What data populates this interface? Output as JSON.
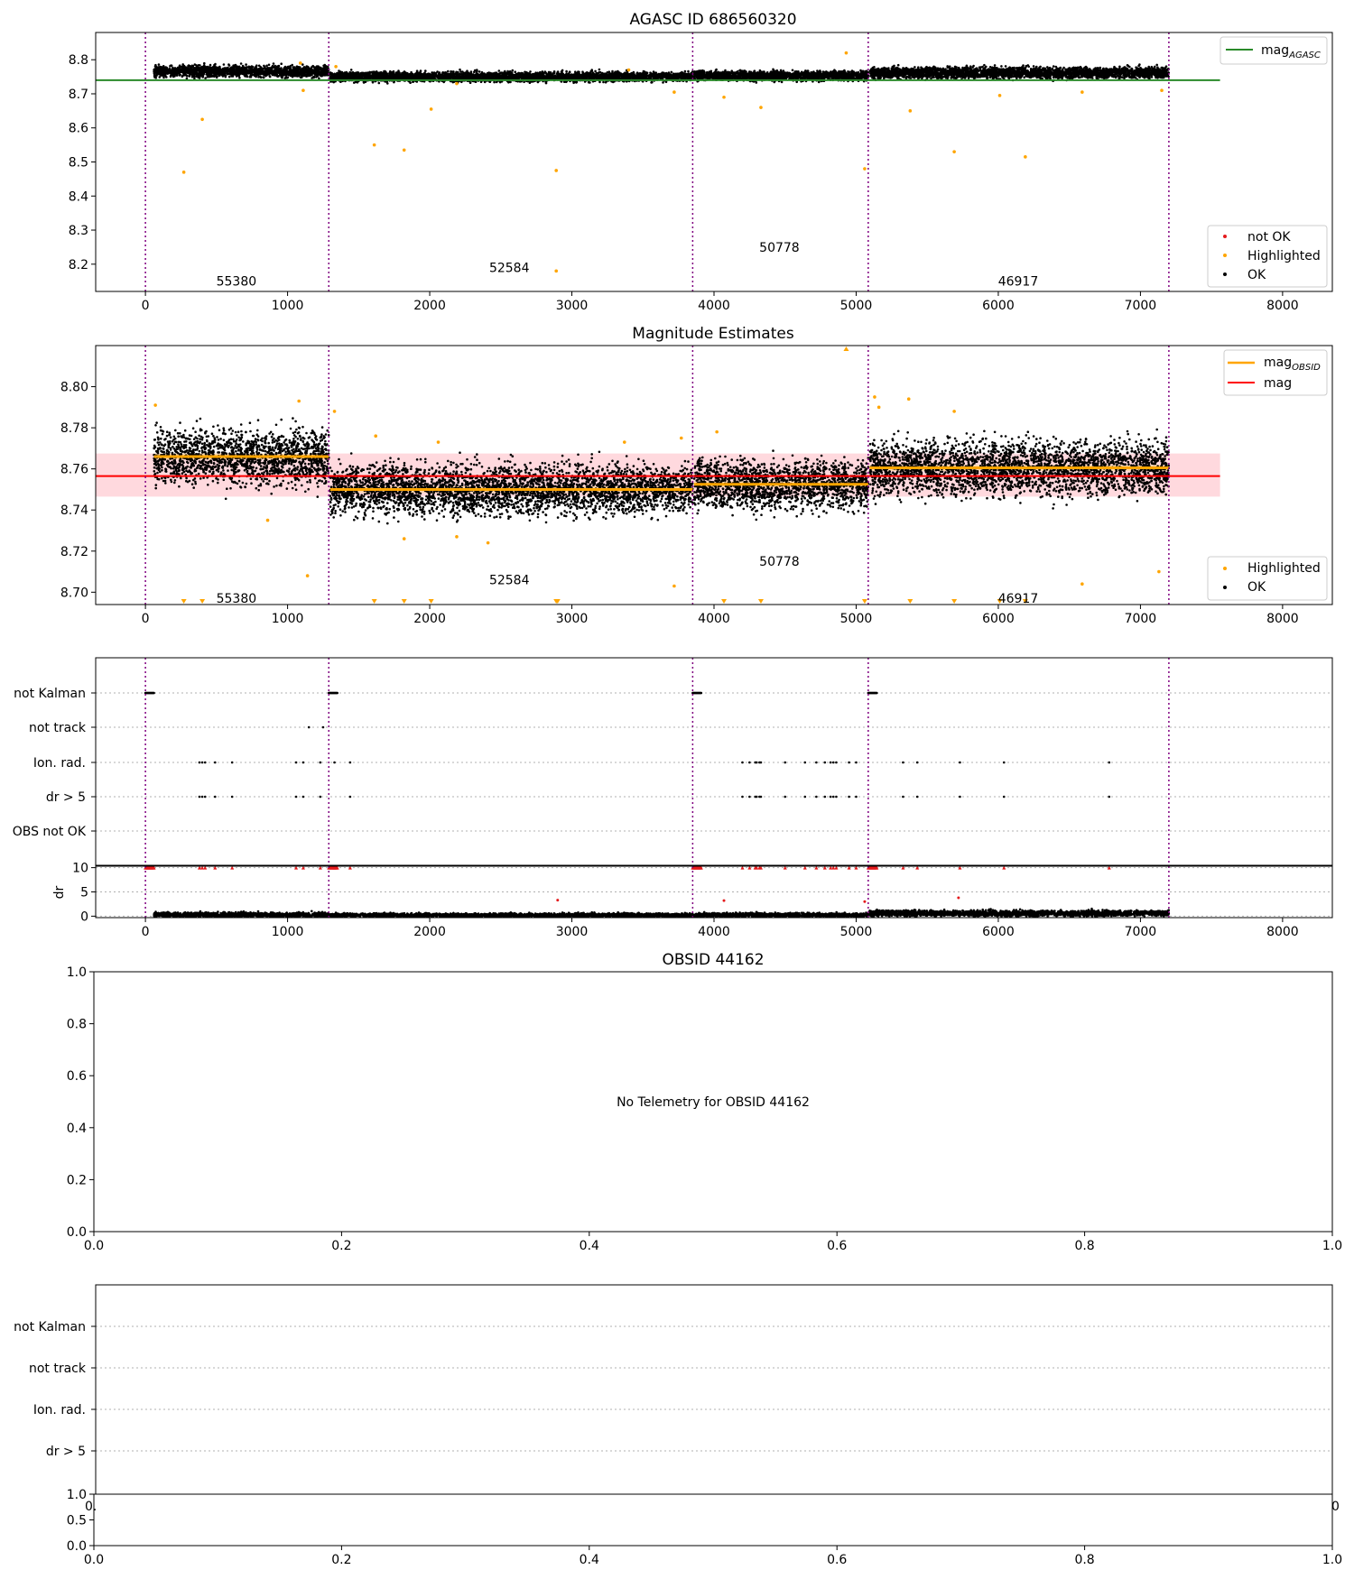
{
  "colors": {
    "ok": "#000000",
    "not_ok": "#e41a1c",
    "highlighted": "#ffa500",
    "mag_agasc": "#2a8a2a",
    "mag_obsid": "#ffa500",
    "mag": "#ff0000",
    "mag_band": "#ffc0c8",
    "obsid_band": "#ffd8a0",
    "boundary": "#800080",
    "grid": "#b0b0b0"
  },
  "chart_data": [
    {
      "type": "scatter",
      "id": "agasc",
      "title": "AGASC ID 686560320",
      "xlabel": "",
      "ylabel": "",
      "xlim": [
        -350,
        8350
      ],
      "ylim": [
        8.12,
        8.88
      ],
      "x_ticks": [
        0,
        1000,
        2000,
        3000,
        4000,
        5000,
        6000,
        7000,
        8000
      ],
      "x_tick_labels": [
        "0",
        "1000",
        "2000",
        "3000",
        "4000",
        "5000",
        "6000",
        "7000",
        "8000"
      ],
      "y_ticks": [
        8.2,
        8.3,
        8.4,
        8.5,
        8.6,
        8.7,
        8.8
      ],
      "y_tick_labels": [
        "8.2",
        "8.3",
        "8.4",
        "8.5",
        "8.6",
        "8.7",
        "8.8"
      ],
      "boundaries": [
        0,
        1290,
        3850,
        5085,
        7200
      ],
      "reference_line": {
        "name": "mag",
        "sub": "AGASC",
        "y": 8.74,
        "x": [
          -350,
          7560
        ]
      },
      "segments": [
        {
          "x": [
            60,
            1290
          ],
          "y": 8.766,
          "spread": 0.008
        },
        {
          "x": [
            1300,
            3850
          ],
          "y": 8.75,
          "spread": 0.007
        },
        {
          "x": [
            3860,
            5085
          ],
          "y": 8.753,
          "spread": 0.007
        },
        {
          "x": [
            5095,
            7200
          ],
          "y": 8.762,
          "spread": 0.008
        }
      ],
      "highlighted": [
        [
          270,
          8.47
        ],
        [
          400,
          8.625
        ],
        [
          1110,
          8.71
        ],
        [
          1610,
          8.55
        ],
        [
          1820,
          8.535
        ],
        [
          2010,
          8.655
        ],
        [
          2190,
          8.73
        ],
        [
          2890,
          8.475
        ],
        [
          2890,
          8.18
        ],
        [
          3720,
          8.705
        ],
        [
          4070,
          8.69
        ],
        [
          4330,
          8.66
        ],
        [
          4930,
          8.82
        ],
        [
          5060,
          8.48
        ],
        [
          5380,
          8.65
        ],
        [
          5690,
          8.53
        ],
        [
          6010,
          8.695
        ],
        [
          6190,
          8.515
        ],
        [
          6590,
          8.705
        ],
        [
          7150,
          8.71
        ],
        [
          1090,
          8.79
        ],
        [
          1340,
          8.78
        ],
        [
          3400,
          8.77
        ]
      ],
      "obsid_labels": [
        {
          "text": "55380",
          "x": 640,
          "y": 8.15
        },
        {
          "text": "52584",
          "x": 2560,
          "y": 8.19
        },
        {
          "text": "50778",
          "x": 4460,
          "y": 8.25
        },
        {
          "text": "46917",
          "x": 6140,
          "y": 8.15
        }
      ],
      "legend_top": [
        {
          "label": "mag",
          "sub": "AGASC",
          "kind": "line"
        }
      ],
      "legend_bottom": [
        {
          "label": "not OK",
          "kind": "dot-red"
        },
        {
          "label": "Highlighted",
          "kind": "dot-orange"
        },
        {
          "label": "OK",
          "kind": "dot-black"
        }
      ]
    },
    {
      "type": "scatter",
      "id": "estimates",
      "title": "Magnitude Estimates",
      "xlabel": "",
      "ylabel": "",
      "xlim": [
        -350,
        8350
      ],
      "ylim": [
        8.694,
        8.82
      ],
      "x_ticks": [
        0,
        1000,
        2000,
        3000,
        4000,
        5000,
        6000,
        7000,
        8000
      ],
      "x_tick_labels": [
        "0",
        "1000",
        "2000",
        "3000",
        "4000",
        "5000",
        "6000",
        "7000",
        "8000"
      ],
      "y_ticks": [
        8.7,
        8.72,
        8.74,
        8.76,
        8.78,
        8.8
      ],
      "y_tick_labels": [
        "8.70",
        "8.72",
        "8.74",
        "8.76",
        "8.78",
        "8.80"
      ],
      "boundaries": [
        0,
        1290,
        3850,
        5085,
        7200
      ],
      "mag_line": {
        "name": "mag",
        "y": 8.7565,
        "band": [
          8.7465,
          8.7675
        ],
        "x": [
          -350,
          7560
        ]
      },
      "segments": [
        {
          "x": [
            60,
            1290
          ],
          "y": 8.766,
          "spread": 0.0065
        },
        {
          "x": [
            1300,
            3850
          ],
          "y": 8.75,
          "spread": 0.006
        },
        {
          "x": [
            3860,
            5085
          ],
          "y": 8.7525,
          "spread": 0.006
        },
        {
          "x": [
            5095,
            7200
          ],
          "y": 8.7605,
          "spread": 0.0065
        }
      ],
      "highlighted": [
        [
          70,
          8.791
        ],
        [
          1080,
          8.793
        ],
        [
          1140,
          8.708
        ],
        [
          1330,
          8.788
        ],
        [
          1620,
          8.776
        ],
        [
          2060,
          8.773
        ],
        [
          2190,
          8.727
        ],
        [
          2410,
          8.724
        ],
        [
          3370,
          8.773
        ],
        [
          3720,
          8.703
        ],
        [
          3770,
          8.775
        ],
        [
          4020,
          8.778
        ],
        [
          5130,
          8.795
        ],
        [
          5160,
          8.79
        ],
        [
          5370,
          8.794
        ],
        [
          5690,
          8.788
        ],
        [
          6590,
          8.704
        ],
        [
          7130,
          8.71
        ],
        [
          860,
          8.735
        ],
        [
          1820,
          8.726
        ]
      ],
      "clipped_low_x": [
        270,
        400,
        1610,
        1820,
        2010,
        2890,
        2900,
        4070,
        4330,
        5060,
        5380,
        5690,
        6010,
        6190
      ],
      "clipped_high_x": [
        4930
      ],
      "obsid_labels": [
        {
          "text": "55380",
          "x": 640,
          "y": 8.697
        },
        {
          "text": "52584",
          "x": 2560,
          "y": 8.706
        },
        {
          "text": "50778",
          "x": 4460,
          "y": 8.715
        },
        {
          "text": "46917",
          "x": 6140,
          "y": 8.697
        }
      ],
      "legend_top": [
        {
          "label": "mag",
          "sub": "OBSID",
          "kind": "line-orange"
        },
        {
          "label": "mag",
          "kind": "line-red"
        }
      ],
      "legend_bottom": [
        {
          "label": "Highlighted",
          "kind": "dot-orange"
        },
        {
          "label": "OK",
          "kind": "dot-black"
        }
      ]
    },
    {
      "type": "scatter",
      "id": "flags",
      "title": "",
      "xlim": [
        -350,
        8350
      ],
      "categories": [
        "not Kalman",
        "not track",
        "Ion. rad.",
        "dr > 5",
        "OBS not OK"
      ],
      "boundaries": [
        0,
        1290,
        3850,
        5085,
        7200
      ],
      "not_kalman_x": [
        [
          0,
          60
        ],
        [
          1290,
          1350
        ],
        [
          3850,
          3910
        ],
        [
          5085,
          5145
        ]
      ],
      "not_track_x": [
        1150,
        1250
      ],
      "ion_rad_x": [
        380,
        400,
        420,
        490,
        610,
        1060,
        1110,
        1230,
        1330,
        1440,
        4200,
        4250,
        4290,
        4300,
        4320,
        4330,
        4500,
        4640,
        4720,
        4780,
        4820,
        4840,
        4860,
        4950,
        5000,
        5330,
        5430,
        5730,
        6040,
        6780
      ],
      "dr_gt5_x": [
        380,
        400,
        420,
        490,
        610,
        1060,
        1110,
        1230,
        1440,
        4200,
        4250,
        4290,
        4300,
        4320,
        4330,
        4500,
        4640,
        4720,
        4780,
        4820,
        4840,
        4860,
        4950,
        5000,
        5330,
        5430,
        5730,
        6040,
        6780
      ]
    },
    {
      "type": "scatter",
      "id": "dr",
      "title": "",
      "ylabel": "dr",
      "xlim": [
        -350,
        8350
      ],
      "ylim": [
        -0.3,
        10.3
      ],
      "x_ticks": [
        0,
        1000,
        2000,
        3000,
        4000,
        5000,
        6000,
        7000,
        8000
      ],
      "x_tick_labels": [
        "0",
        "1000",
        "2000",
        "3000",
        "4000",
        "5000",
        "6000",
        "7000",
        "8000"
      ],
      "y_ticks": [
        0,
        5,
        10
      ],
      "y_tick_labels": [
        "0",
        "5",
        "10"
      ],
      "boundaries": [
        0,
        1290,
        3850,
        5085,
        7200
      ],
      "segments": [
        {
          "x": [
            60,
            1290
          ],
          "y": 0.3,
          "spread": 0.25
        },
        {
          "x": [
            1300,
            3850
          ],
          "y": 0.2,
          "spread": 0.2
        },
        {
          "x": [
            3860,
            5085
          ],
          "y": 0.25,
          "spread": 0.2
        },
        {
          "x": [
            5095,
            7200
          ],
          "y": 0.6,
          "spread": 0.3
        }
      ],
      "not_ok": [
        [
          2900,
          3.3
        ],
        [
          4070,
          3.2
        ],
        [
          5720,
          3.8
        ],
        [
          5060,
          3.0
        ]
      ]
    },
    {
      "type": "scatter",
      "id": "obsid",
      "title": "OBSID 44162",
      "xlim": [
        0,
        1
      ],
      "ylim": [
        0,
        1
      ],
      "x_ticks": [
        0,
        0.2,
        0.4,
        0.6,
        0.8,
        1
      ],
      "x_tick_labels": [
        "0.0",
        "0.2",
        "0.4",
        "0.6",
        "0.8",
        "1.0"
      ],
      "y_ticks": [
        0,
        0.2,
        0.4,
        0.6,
        0.8,
        1
      ],
      "y_tick_labels": [
        "0.0",
        "0.2",
        "0.4",
        "0.6",
        "0.8",
        "1.0"
      ],
      "message": "No Telemetry for OBSID 44162"
    },
    {
      "type": "scatter",
      "id": "obsid_flags",
      "title": "",
      "categories": [
        "not Kalman",
        "not track",
        "Ion. rad.",
        "dr > 5"
      ]
    },
    {
      "type": "scatter",
      "id": "obsid_dr",
      "title": "",
      "xlim": [
        0,
        1
      ],
      "ylim": [
        0,
        1
      ],
      "x_ticks": [
        0,
        0.2,
        0.4,
        0.6,
        0.8,
        1
      ],
      "x_tick_labels": [
        "0.0",
        "0.2",
        "0.4",
        "0.6",
        "0.8",
        "1.0"
      ],
      "y_ticks": [
        0,
        0.5,
        1
      ],
      "y_tick_labels": [
        "0.0",
        "0.5",
        "1.0"
      ],
      "overlap_left": "0.",
      "overlap_right": "0"
    }
  ]
}
